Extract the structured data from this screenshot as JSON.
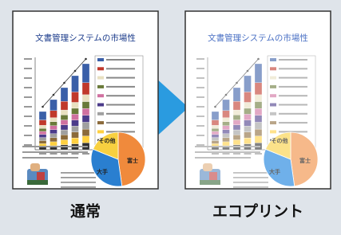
{
  "documents": [
    {
      "title": "文書管理システムの市場性",
      "pie_labels": [
        "その他",
        "大手",
        "富士"
      ],
      "caption": "通常"
    },
    {
      "title": "文書管理システムの市場性",
      "pie_labels": [
        "その他",
        "大手",
        "富士"
      ],
      "caption": "エコプリント"
    }
  ]
}
